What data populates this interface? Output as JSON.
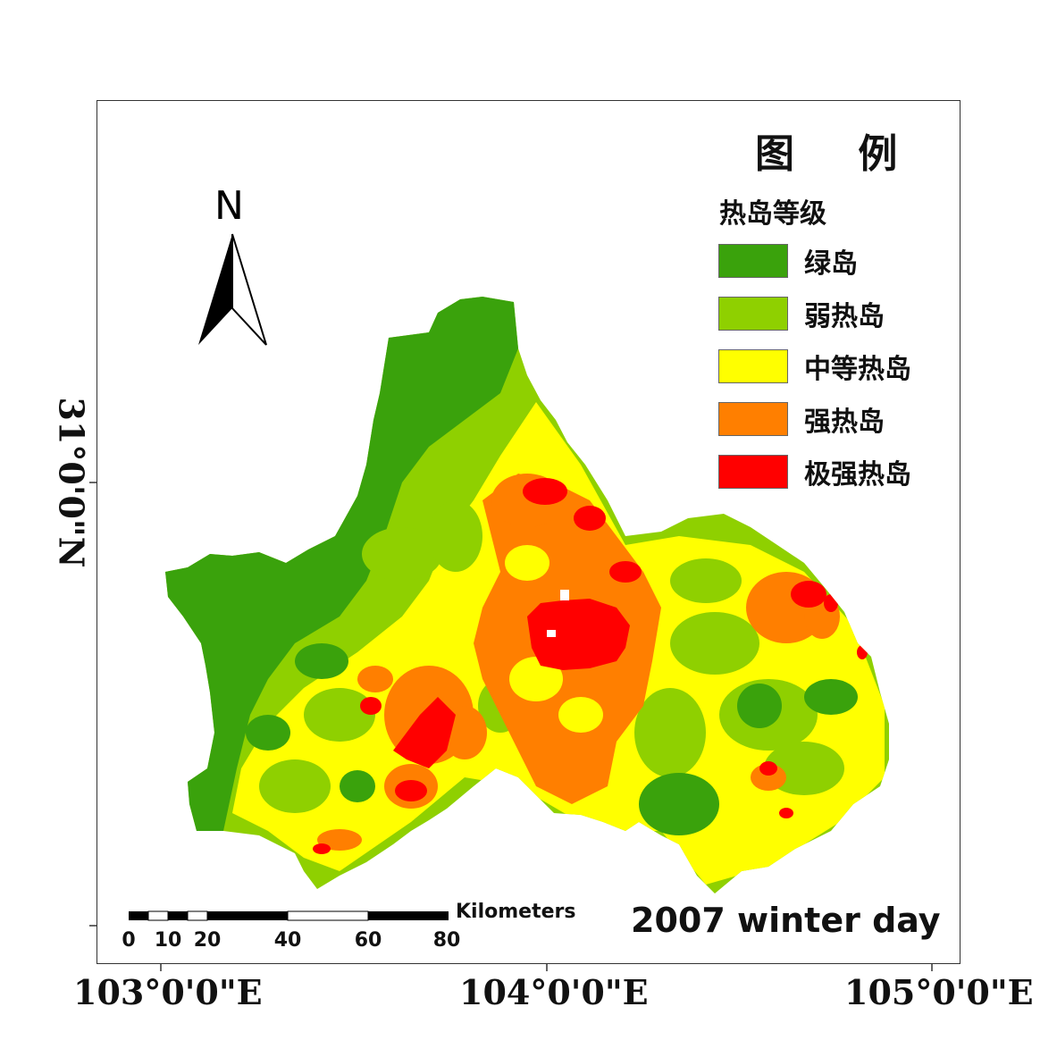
{
  "legend": {
    "title": "图 例",
    "subtitle": "热岛等级",
    "items": [
      {
        "label": "绿岛",
        "color": "#3aa20c"
      },
      {
        "label": "弱热岛",
        "color": "#8fd000"
      },
      {
        "label": "中等热岛",
        "color": "#ffff00"
      },
      {
        "label": "强热岛",
        "color": "#ff7f00"
      },
      {
        "label": "极强热岛",
        "color": "#ff0000"
      }
    ]
  },
  "north_arrow": {
    "label": "N"
  },
  "axes": {
    "longitude_labels": [
      "103°0'0\"E",
      "104°0'0\"E",
      "105°0'0\"E"
    ],
    "latitude_label": "31°0'0\"N"
  },
  "scale_bar": {
    "unit_label": "Kilometers",
    "ticks": [
      "0",
      "10",
      "20",
      "40",
      "60",
      "80"
    ]
  },
  "caption": "2007 winter day"
}
